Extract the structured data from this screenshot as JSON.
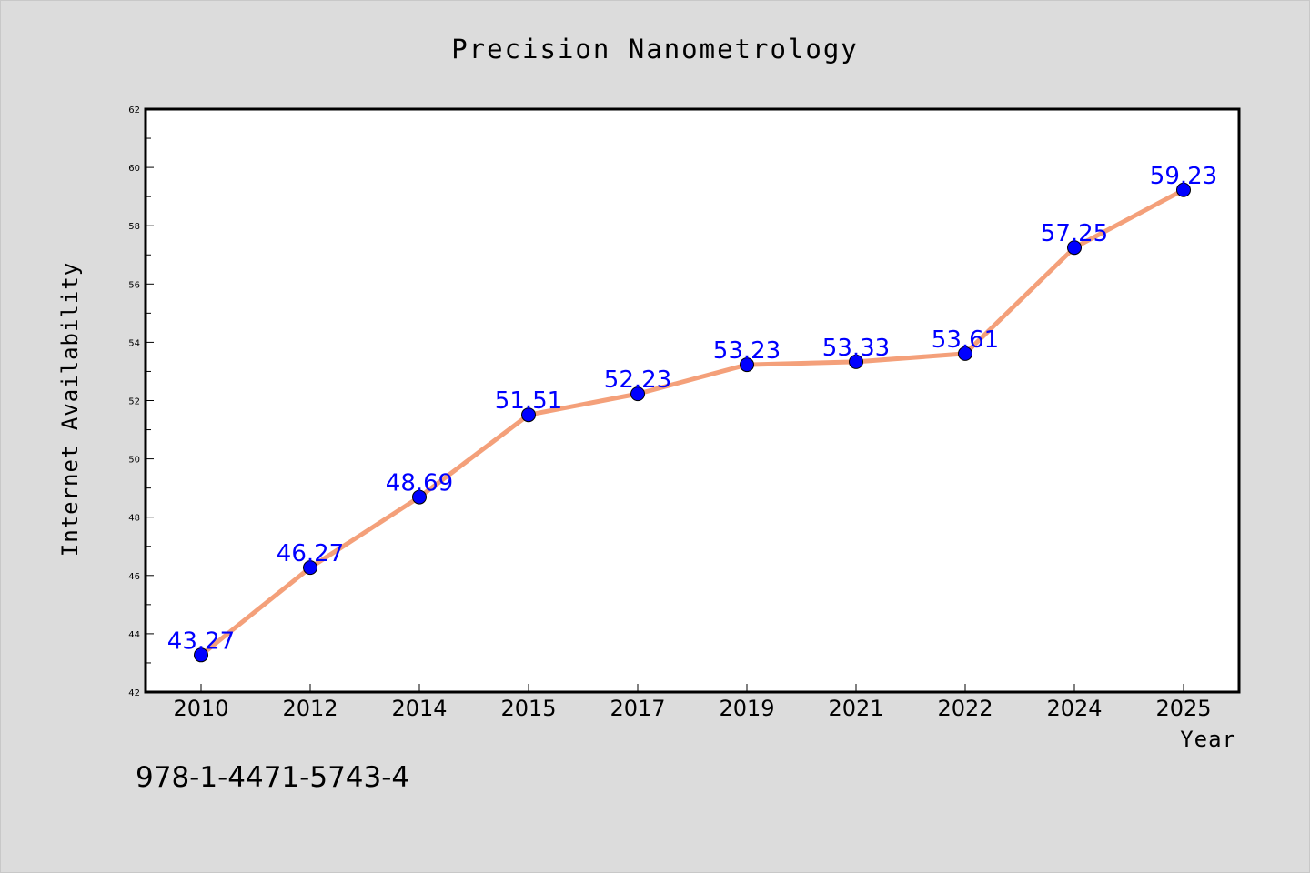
{
  "chart_data": {
    "type": "line",
    "title": "Precision Nanometrology",
    "xlabel": "Year",
    "ylabel": "Internet Availability",
    "categories": [
      "2010",
      "2012",
      "2014",
      "2015",
      "2017",
      "2019",
      "2021",
      "2022",
      "2024",
      "2025"
    ],
    "series": [
      {
        "values": [
          43.27,
          46.27,
          48.69,
          51.51,
          52.23,
          53.23,
          53.33,
          53.61,
          57.25,
          59.23
        ],
        "labels": [
          "43.27",
          "46.27",
          "48.69",
          "51.51",
          "52.23",
          "53.23",
          "53.33",
          "53.61",
          "57.25",
          "59.23"
        ],
        "line_color": "#f4a07a",
        "marker_color": "#0000ff"
      }
    ],
    "ylim": [
      42,
      62
    ],
    "yticks": [
      "42",
      "44",
      "46",
      "48",
      "50",
      "52",
      "54",
      "56",
      "58",
      "60",
      "62"
    ],
    "grid": false,
    "legend": "none"
  },
  "footer": {
    "isbn": "978-1-4471-5743-4"
  },
  "colors": {
    "background": "#dcdcdc",
    "plot_area": "#ffffff",
    "line": "#f4a07a",
    "marker": "#0000ff",
    "label": "#0000ff"
  }
}
